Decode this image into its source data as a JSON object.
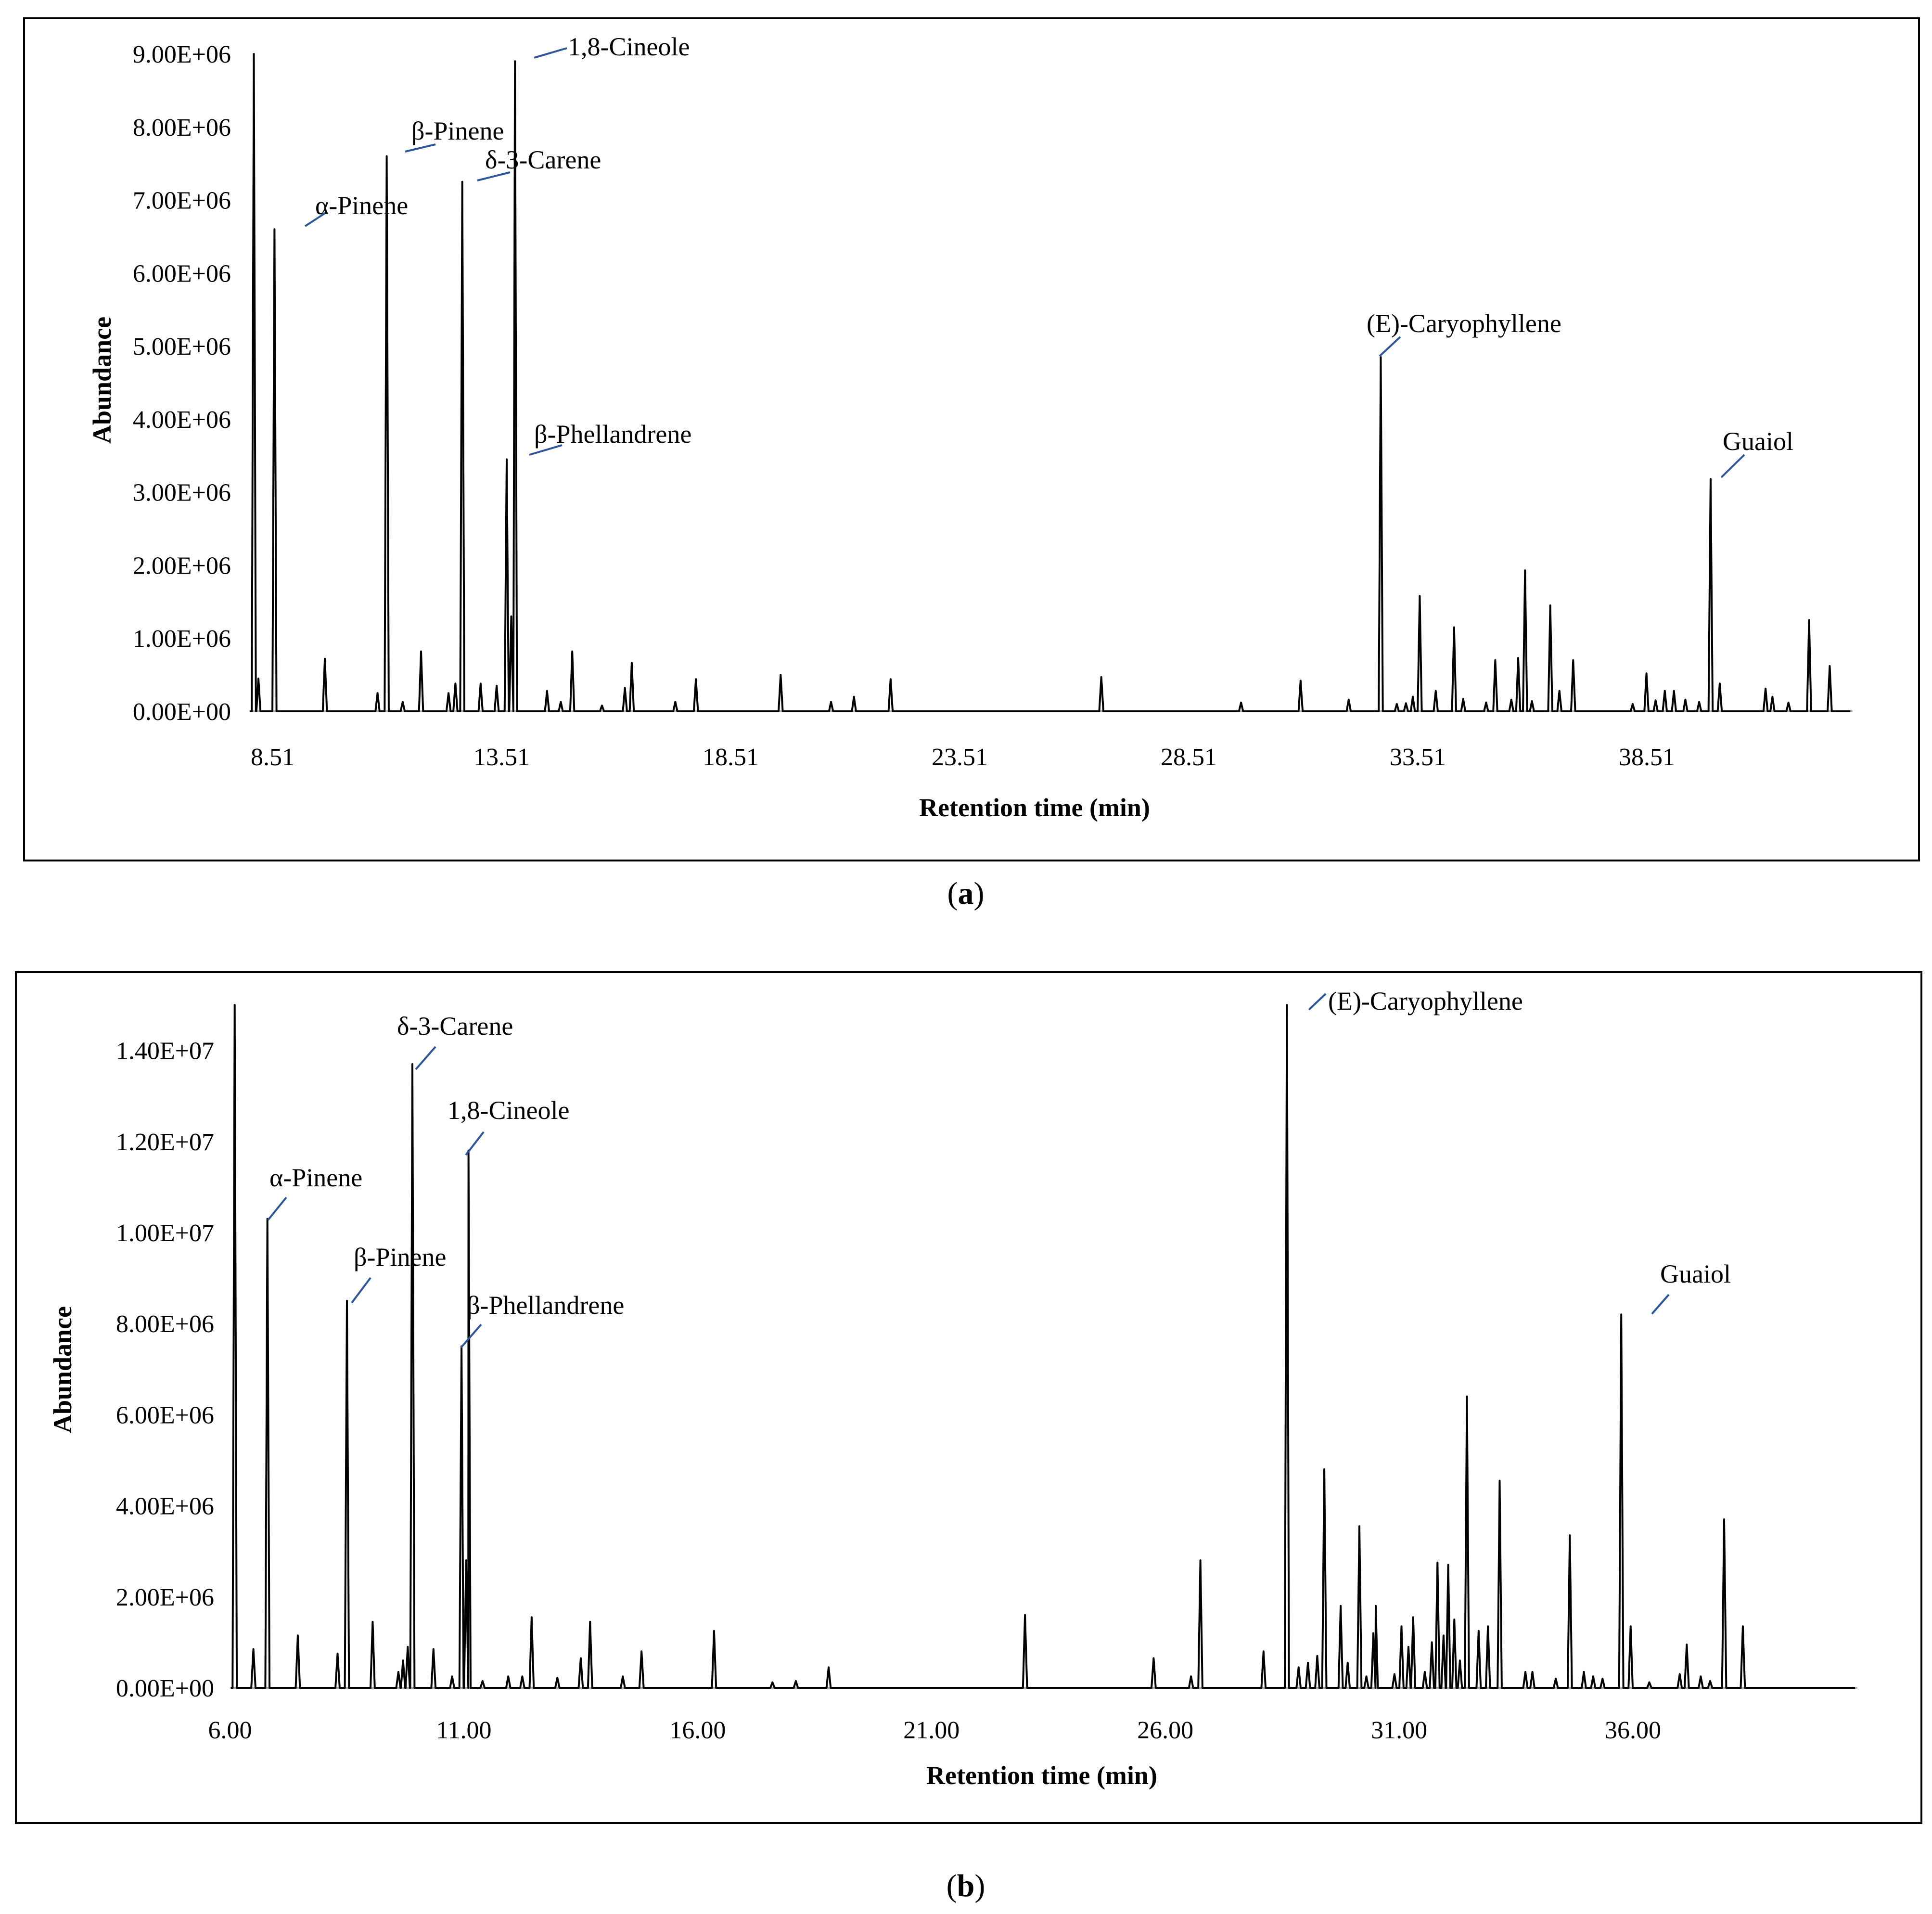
{
  "chart_data": [
    {
      "type": "line",
      "panel": "a",
      "caption_open": "(",
      "caption_letter": "a",
      "caption_close": ")",
      "xlabel": "Retention time (min)",
      "ylabel": "Abundance",
      "xlim": [
        8.0,
        43.0
      ],
      "ylim": [
        0,
        9000000
      ],
      "x_ticks": [
        {
          "value": 8.51,
          "label": "8.51"
        },
        {
          "value": 13.51,
          "label": "13.51"
        },
        {
          "value": 18.51,
          "label": "18.51"
        },
        {
          "value": 23.51,
          "label": "23.51"
        },
        {
          "value": 28.51,
          "label": "28.51"
        },
        {
          "value": 33.51,
          "label": "33.51"
        },
        {
          "value": 38.51,
          "label": "38.51"
        }
      ],
      "y_ticks": [
        {
          "value": 0,
          "label": "0.00E+00"
        },
        {
          "value": 1000000,
          "label": "1.00E+06"
        },
        {
          "value": 2000000,
          "label": "2.00E+06"
        },
        {
          "value": 3000000,
          "label": "3.00E+06"
        },
        {
          "value": 4000000,
          "label": "4.00E+06"
        },
        {
          "value": 5000000,
          "label": "5.00E+06"
        },
        {
          "value": 6000000,
          "label": "6.00E+06"
        },
        {
          "value": 7000000,
          "label": "7.00E+06"
        },
        {
          "value": 8000000,
          "label": "8.00E+06"
        },
        {
          "value": 9000000,
          "label": "9.00E+06"
        }
      ],
      "peaks": [
        [
          8.1,
          9000000
        ],
        [
          8.2,
          450000
        ],
        [
          8.55,
          6600000
        ],
        [
          9.65,
          720000
        ],
        [
          10.8,
          250000
        ],
        [
          11.0,
          7600000
        ],
        [
          11.35,
          130000
        ],
        [
          11.75,
          820000
        ],
        [
          12.35,
          250000
        ],
        [
          12.5,
          380000
        ],
        [
          12.65,
          7250000
        ],
        [
          13.05,
          380000
        ],
        [
          13.4,
          350000
        ],
        [
          13.62,
          3450000
        ],
        [
          13.72,
          1300000
        ],
        [
          13.8,
          8900000
        ],
        [
          14.5,
          280000
        ],
        [
          14.8,
          130000
        ],
        [
          15.05,
          820000
        ],
        [
          15.7,
          80000
        ],
        [
          16.2,
          320000
        ],
        [
          16.35,
          660000
        ],
        [
          17.3,
          130000
        ],
        [
          17.75,
          440000
        ],
        [
          19.6,
          500000
        ],
        [
          20.7,
          130000
        ],
        [
          21.2,
          200000
        ],
        [
          22.0,
          440000
        ],
        [
          26.6,
          470000
        ],
        [
          29.65,
          120000
        ],
        [
          30.95,
          420000
        ],
        [
          32.0,
          160000
        ],
        [
          32.7,
          4850000
        ],
        [
          33.05,
          100000
        ],
        [
          33.25,
          110000
        ],
        [
          33.4,
          200000
        ],
        [
          33.55,
          1580000
        ],
        [
          33.9,
          280000
        ],
        [
          34.3,
          1150000
        ],
        [
          34.5,
          170000
        ],
        [
          35.0,
          120000
        ],
        [
          35.2,
          700000
        ],
        [
          35.55,
          160000
        ],
        [
          35.7,
          730000
        ],
        [
          35.85,
          1930000
        ],
        [
          36.0,
          140000
        ],
        [
          36.4,
          1450000
        ],
        [
          36.6,
          280000
        ],
        [
          36.9,
          700000
        ],
        [
          38.2,
          100000
        ],
        [
          38.5,
          520000
        ],
        [
          38.7,
          150000
        ],
        [
          38.9,
          280000
        ],
        [
          39.1,
          280000
        ],
        [
          39.35,
          160000
        ],
        [
          39.65,
          130000
        ],
        [
          39.9,
          3180000
        ],
        [
          40.1,
          380000
        ],
        [
          41.1,
          310000
        ],
        [
          41.25,
          200000
        ],
        [
          41.6,
          120000
        ],
        [
          42.05,
          1250000
        ],
        [
          42.5,
          620000
        ]
      ],
      "annotations": [
        {
          "label": "α-Pinene",
          "rt": 8.55,
          "abundance": 6600000
        },
        {
          "label": "β-Pinene",
          "rt": 11.0,
          "abundance": 7600000
        },
        {
          "label": "δ-3-Carene",
          "rt": 12.65,
          "abundance": 7250000
        },
        {
          "label": "1,8-Cineole",
          "rt": 13.8,
          "abundance": 8900000
        },
        {
          "label": "β-Phellandrene",
          "rt": 13.62,
          "abundance": 3450000
        },
        {
          "label": "(E)-Caryophyllene",
          "rt": 32.7,
          "abundance": 4850000
        },
        {
          "label": "Guaiol",
          "rt": 39.9,
          "abundance": 3180000
        }
      ]
    },
    {
      "type": "line",
      "panel": "b",
      "caption_open": "(",
      "caption_letter": "b",
      "caption_close": ")",
      "xlabel": "Retention time (min)",
      "ylabel": "Abundance",
      "xlim": [
        6.0,
        40.8
      ],
      "ylim": [
        0,
        15000000
      ],
      "x_ticks": [
        {
          "value": 6.0,
          "label": "6.00"
        },
        {
          "value": 11.0,
          "label": "11.00"
        },
        {
          "value": 16.0,
          "label": "16.00"
        },
        {
          "value": 21.0,
          "label": "21.00"
        },
        {
          "value": 26.0,
          "label": "26.00"
        },
        {
          "value": 31.0,
          "label": "31.00"
        },
        {
          "value": 36.0,
          "label": "36.00"
        }
      ],
      "y_ticks": [
        {
          "value": 0,
          "label": "0.00E+00"
        },
        {
          "value": 2000000,
          "label": "2.00E+06"
        },
        {
          "value": 4000000,
          "label": "4.00E+06"
        },
        {
          "value": 6000000,
          "label": "6.00E+06"
        },
        {
          "value": 8000000,
          "label": "8.00E+06"
        },
        {
          "value": 10000000,
          "label": "1.00E+07"
        },
        {
          "value": 12000000,
          "label": "1.20E+07"
        },
        {
          "value": 14000000,
          "label": "1.40E+07"
        }
      ],
      "peaks": [
        [
          6.1,
          15000000
        ],
        [
          6.5,
          850000
        ],
        [
          6.8,
          10300000
        ],
        [
          7.45,
          1150000
        ],
        [
          8.3,
          750000
        ],
        [
          8.5,
          8500000
        ],
        [
          9.05,
          1450000
        ],
        [
          9.6,
          350000
        ],
        [
          9.7,
          600000
        ],
        [
          9.8,
          900000
        ],
        [
          9.9,
          13700000
        ],
        [
          10.35,
          850000
        ],
        [
          10.75,
          250000
        ],
        [
          10.95,
          7500000
        ],
        [
          11.05,
          2800000
        ],
        [
          11.1,
          11800000
        ],
        [
          11.4,
          150000
        ],
        [
          11.95,
          250000
        ],
        [
          12.25,
          250000
        ],
        [
          12.45,
          1550000
        ],
        [
          13.0,
          220000
        ],
        [
          13.5,
          650000
        ],
        [
          13.7,
          1450000
        ],
        [
          14.4,
          250000
        ],
        [
          14.8,
          800000
        ],
        [
          16.35,
          1250000
        ],
        [
          17.6,
          120000
        ],
        [
          18.1,
          150000
        ],
        [
          18.8,
          450000
        ],
        [
          23.0,
          1600000
        ],
        [
          25.75,
          650000
        ],
        [
          26.55,
          250000
        ],
        [
          26.75,
          2800000
        ],
        [
          28.1,
          800000
        ],
        [
          28.6,
          15000000
        ],
        [
          28.85,
          450000
        ],
        [
          29.05,
          550000
        ],
        [
          29.25,
          700000
        ],
        [
          29.4,
          4800000
        ],
        [
          29.75,
          1800000
        ],
        [
          29.9,
          550000
        ],
        [
          30.15,
          3550000
        ],
        [
          30.3,
          250000
        ],
        [
          30.45,
          1200000
        ],
        [
          30.5,
          1800000
        ],
        [
          30.9,
          300000
        ],
        [
          31.05,
          1350000
        ],
        [
          31.2,
          900000
        ],
        [
          31.3,
          1550000
        ],
        [
          31.55,
          350000
        ],
        [
          31.7,
          1000000
        ],
        [
          31.82,
          2750000
        ],
        [
          31.95,
          1150000
        ],
        [
          32.05,
          2700000
        ],
        [
          32.18,
          1500000
        ],
        [
          32.3,
          600000
        ],
        [
          32.45,
          6400000
        ],
        [
          32.7,
          1250000
        ],
        [
          32.9,
          1350000
        ],
        [
          33.15,
          4550000
        ],
        [
          33.7,
          350000
        ],
        [
          33.85,
          350000
        ],
        [
          34.35,
          200000
        ],
        [
          34.65,
          3350000
        ],
        [
          34.95,
          350000
        ],
        [
          35.15,
          250000
        ],
        [
          35.35,
          200000
        ],
        [
          35.75,
          8200000
        ],
        [
          35.95,
          1350000
        ],
        [
          36.35,
          120000
        ],
        [
          37.0,
          300000
        ],
        [
          37.15,
          950000
        ],
        [
          37.45,
          250000
        ],
        [
          37.65,
          150000
        ],
        [
          37.95,
          3700000
        ],
        [
          38.35,
          1350000
        ]
      ],
      "annotations": [
        {
          "label": "α-Pinene",
          "rt": 6.8,
          "abundance": 10300000
        },
        {
          "label": "β-Pinene",
          "rt": 8.5,
          "abundance": 8500000
        },
        {
          "label": "δ-3-Carene",
          "rt": 9.9,
          "abundance": 13700000
        },
        {
          "label": "1,8-Cineole",
          "rt": 11.1,
          "abundance": 11800000
        },
        {
          "label": "β-Phellandrene",
          "rt": 10.95,
          "abundance": 7500000
        },
        {
          "label": "(E)-Caryophyllene",
          "rt": 28.6,
          "abundance": 15000000
        },
        {
          "label": "Guaiol",
          "rt": 35.75,
          "abundance": 8200000
        }
      ]
    }
  ]
}
